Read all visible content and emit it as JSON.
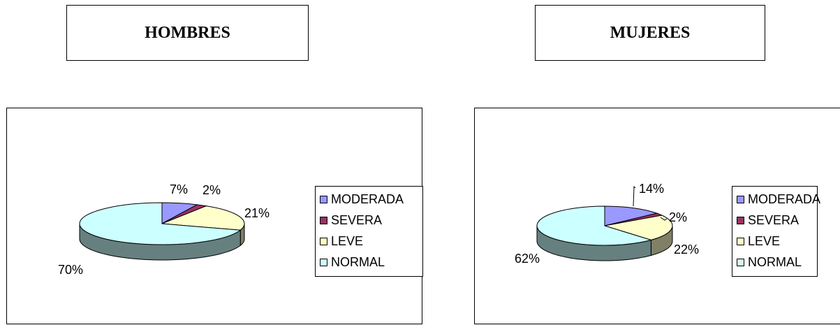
{
  "titles": {
    "left": "HOMBRES",
    "right": "MUJERES"
  },
  "chart_data": [
    {
      "type": "pie",
      "title": "HOMBRES",
      "style": "3d",
      "legend_position": "right",
      "categories": [
        "MODERADA",
        "SEVERA",
        "LEVE",
        "NORMAL"
      ],
      "values": [
        7,
        2,
        21,
        70
      ],
      "value_labels": [
        "7%",
        "2%",
        "21%",
        "70%"
      ],
      "colors": [
        "#9999ff",
        "#993366",
        "#ffffcc",
        "#ccffff"
      ]
    },
    {
      "type": "pie",
      "title": "MUJERES",
      "style": "3d",
      "legend_position": "right",
      "categories": [
        "MODERADA",
        "SEVERA",
        "LEVE",
        "NORMAL"
      ],
      "values": [
        14,
        2,
        22,
        62
      ],
      "value_labels": [
        "14%",
        "2%",
        "22%",
        "62%"
      ],
      "colors": [
        "#9999ff",
        "#993366",
        "#ffffcc",
        "#ccffff"
      ]
    }
  ]
}
